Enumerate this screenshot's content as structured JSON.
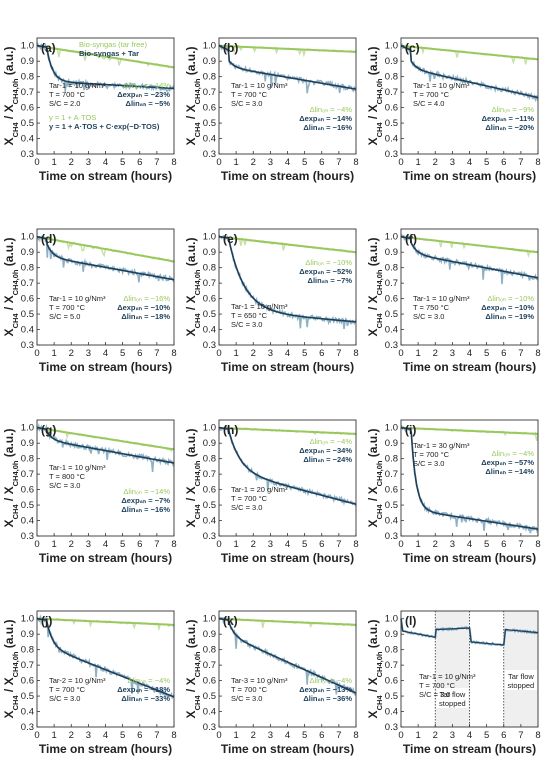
{
  "colors": {
    "light": "#9ac85e",
    "dark": "#1d3f5a",
    "noise": "#7aa3bb",
    "shade": "#efefef"
  },
  "shared_axes": {
    "xlabel": "Time on stream (hours)",
    "ylabel_main": "X",
    "ylabel_sub1": "CH4",
    "ylabel_mid": " / X",
    "ylabel_sub2": "CH4,0h",
    "ylabel_unit": " (a.u.)",
    "xticks": [
      "0",
      "1",
      "2",
      "3",
      "4",
      "5",
      "6",
      "7",
      "8"
    ],
    "yticks": [
      "0.3",
      "0.4",
      "0.5",
      "0.6",
      "0.7",
      "0.8",
      "0.9",
      "1.0"
    ]
  },
  "legend": {
    "series_light": "Bio-syngas (tar free)",
    "series_dark": "Bio-syngas + Tar",
    "model_linear": "y = 1 + A·TOS",
    "model_exp": "y = 1 + A·TOS + C·exp(−D·TOS)"
  },
  "chart_data": [
    {
      "type": "line",
      "panel": "(a)",
      "xlim": [
        0,
        8
      ],
      "ylim": [
        0.3,
        1.05
      ],
      "conditions": [
        "Tar-1 = 10 g/Nm³",
        "T = 700 °C",
        "S/C = 2.0"
      ],
      "deltas": [
        {
          "label": "Δlin₀ₕ = −14%",
          "series": "light"
        },
        {
          "label": "Δexp₈ₕ = −23%",
          "series": "dark"
        },
        {
          "label": "Δlin₈ₕ = −5%",
          "series": "dark"
        }
      ],
      "series": [
        {
          "name": "Bio-syngas (tar free)",
          "model": "linear",
          "A": -0.0175
        },
        {
          "name": "Bio-syngas + Tar",
          "model": "exp",
          "y0": 1.0,
          "yjump": 0.97,
          "A": -0.0062,
          "C": 0.2,
          "D": 3.0,
          "t_start": 0.6
        }
      ]
    },
    {
      "type": "line",
      "panel": "(b)",
      "xlim": [
        0,
        8
      ],
      "ylim": [
        0.3,
        1.05
      ],
      "conditions": [
        "Tar-1 = 10 g/Nm³",
        "T = 700 °C",
        "S/C = 3.0"
      ],
      "deltas": [
        {
          "label": "Δlin₀ₕ = −4%",
          "series": "light"
        },
        {
          "label": "Δexp₈ₕ = −14%",
          "series": "dark"
        },
        {
          "label": "Δlin₈ₕ = −16%",
          "series": "dark"
        }
      ],
      "series": [
        {
          "name": "Bio-syngas (tar free)",
          "model": "linear",
          "A": -0.005
        },
        {
          "name": "Bio-syngas + Tar",
          "model": "exp",
          "y0": 1.0,
          "yjump": 0.9,
          "A": -0.019,
          "C": 0.04,
          "D": 3.0,
          "t_start": 0.6
        }
      ]
    },
    {
      "type": "line",
      "panel": "(c)",
      "xlim": [
        0,
        8
      ],
      "ylim": [
        0.3,
        1.05
      ],
      "conditions": [
        "Tar-1 = 10 g/Nm³",
        "T = 700 °C",
        "S/C = 4.0"
      ],
      "deltas": [
        {
          "label": "Δlin₀ₕ = −9%",
          "series": "light"
        },
        {
          "label": "Δexp₈ₕ = −11%",
          "series": "dark"
        },
        {
          "label": "Δlin₈ₕ = −20%",
          "series": "dark"
        }
      ],
      "series": [
        {
          "name": "Bio-syngas (tar free)",
          "model": "linear",
          "A": -0.011
        },
        {
          "name": "Bio-syngas + Tar",
          "model": "exp",
          "y0": 1.0,
          "yjump": 0.9,
          "A": -0.025,
          "C": 0.05,
          "D": 3.0,
          "t_start": 0.6
        }
      ]
    },
    {
      "type": "line",
      "panel": "(d)",
      "xlim": [
        0,
        8
      ],
      "ylim": [
        0.3,
        1.05
      ],
      "conditions": [
        "Tar-1 = 10 g/Nm³",
        "T = 700 °C",
        "S/C = 5.0"
      ],
      "deltas": [
        {
          "label": "Δlin₀ₕ = −16%",
          "series": "light"
        },
        {
          "label": "Δexp₈ₕ = −10%",
          "series": "dark"
        },
        {
          "label": "Δlin₈ₕ = −18%",
          "series": "dark"
        }
      ],
      "series": [
        {
          "name": "Bio-syngas (tar free)",
          "model": "linear",
          "A": -0.02
        },
        {
          "name": "Bio-syngas + Tar",
          "model": "exp",
          "y0": 1.0,
          "yjump": 0.95,
          "A": -0.02,
          "C": 0.08,
          "D": 3.0,
          "t_start": 0.6
        }
      ]
    },
    {
      "type": "line",
      "panel": "(e)",
      "xlim": [
        0,
        8
      ],
      "ylim": [
        0.3,
        1.05
      ],
      "conditions": [
        "Tar-1 = 10 g/Nm³",
        "T = 650 °C",
        "S/C = 3.0"
      ],
      "deltas": [
        {
          "label": "Δlin₀ₕ = −10%",
          "series": "light"
        },
        {
          "label": "Δexp₈ₕ = −52%",
          "series": "dark"
        },
        {
          "label": "Δlin₈ₕ = −7%",
          "series": "dark"
        }
      ],
      "series": [
        {
          "name": "Bio-syngas (tar free)",
          "model": "linear",
          "A": -0.0125
        },
        {
          "name": "Bio-syngas + Tar",
          "model": "exp",
          "y0": 1.0,
          "yjump": 0.97,
          "A": -0.0095,
          "C": 0.45,
          "D": 1.1,
          "t_start": 0.6
        }
      ]
    },
    {
      "type": "line",
      "panel": "(f)",
      "xlim": [
        0,
        8
      ],
      "ylim": [
        0.3,
        1.05
      ],
      "conditions": [
        "Tar-1 = 10 g/Nm³",
        "T = 750 °C",
        "S/C = 3.0"
      ],
      "deltas": [
        {
          "label": "Δlin₀ₕ = −10%",
          "series": "light"
        },
        {
          "label": "Δexp₈ₕ = −10%",
          "series": "dark"
        },
        {
          "label": "Δlin₈ₕ = −19%",
          "series": "dark"
        }
      ],
      "series": [
        {
          "name": "Bio-syngas (tar free)",
          "model": "linear",
          "A": -0.0125
        },
        {
          "name": "Bio-syngas + Tar",
          "model": "exp",
          "y0": 1.0,
          "yjump": 0.96,
          "A": -0.021,
          "C": 0.07,
          "D": 3.0,
          "t_start": 0.6
        }
      ]
    },
    {
      "type": "line",
      "panel": "(g)",
      "xlim": [
        0,
        8
      ],
      "ylim": [
        0.3,
        1.05
      ],
      "conditions": [
        "Tar-1 = 10 g/Nm³",
        "T = 800 °C",
        "S/C = 3.0"
      ],
      "deltas": [
        {
          "label": "Δlin₀ₕ = −14%",
          "series": "light"
        },
        {
          "label": "Δexp₈ₕ = −7%",
          "series": "dark"
        },
        {
          "label": "Δlin₈ₕ = −16%",
          "series": "dark"
        }
      ],
      "series": [
        {
          "name": "Bio-syngas (tar free)",
          "model": "linear",
          "A": -0.0175
        },
        {
          "name": "Bio-syngas + Tar",
          "model": "exp",
          "y0": 1.0,
          "yjump": 0.97,
          "A": -0.02,
          "C": 0.05,
          "D": 3.0,
          "t_start": 0.6
        }
      ]
    },
    {
      "type": "line",
      "panel": "(h)",
      "xlim": [
        0,
        8
      ],
      "ylim": [
        0.3,
        1.05
      ],
      "conditions": [
        "Tar-1 = 20 g/Nm³",
        "T = 700 °C",
        "S/C = 3.0"
      ],
      "deltas": [
        {
          "label": "Δlin₀ₕ = −4%",
          "series": "light"
        },
        {
          "label": "Δexp₈ₕ = −34%",
          "series": "dark"
        },
        {
          "label": "Δlin₈ₕ = −24%",
          "series": "dark"
        }
      ],
      "series": [
        {
          "name": "Bio-syngas (tar free)",
          "model": "linear",
          "A": -0.005
        },
        {
          "name": "Bio-syngas + Tar",
          "model": "exp",
          "y0": 1.0,
          "yjump": 0.97,
          "A": -0.029,
          "C": 0.25,
          "D": 1.5,
          "t_start": 0.6
        }
      ]
    },
    {
      "type": "line",
      "panel": "(i)",
      "xlim": [
        0,
        8
      ],
      "ylim": [
        0.3,
        1.05
      ],
      "conditions": [
        "Tar-1 = 30 g/Nm³",
        "T = 700 °C",
        "S/C = 3.0"
      ],
      "deltas": [
        {
          "label": "Δlin₀ₕ = −4%",
          "series": "light"
        },
        {
          "label": "Δexp₈ₕ = −57%",
          "series": "dark"
        },
        {
          "label": "Δlin₈ₕ = −14%",
          "series": "dark"
        }
      ],
      "series": [
        {
          "name": "Bio-syngas (tar free)",
          "model": "linear",
          "A": -0.005
        },
        {
          "name": "Bio-syngas + Tar",
          "model": "exp",
          "y0": 1.0,
          "yjump": 0.97,
          "A": -0.017,
          "C": 0.5,
          "D": 3.5,
          "t_start": 0.6
        }
      ]
    },
    {
      "type": "line",
      "panel": "(j)",
      "xlim": [
        0,
        8
      ],
      "ylim": [
        0.3,
        1.05
      ],
      "conditions": [
        "Tar-2 = 10 g/Nm³",
        "T = 700 °C",
        "S/C = 3.0"
      ],
      "deltas": [
        {
          "label": "Δlin₀ₕ = −4%",
          "series": "light"
        },
        {
          "label": "Δexp₈ₕ = −18%",
          "series": "dark"
        },
        {
          "label": "Δlin₈ₕ = −33%",
          "series": "dark"
        }
      ],
      "series": [
        {
          "name": "Bio-syngas (tar free)",
          "model": "linear",
          "A": -0.005
        },
        {
          "name": "Bio-syngas + Tar",
          "model": "exp",
          "y0": 1.0,
          "yjump": 0.97,
          "A": -0.044,
          "C": 0.15,
          "D": 3.0,
          "t_start": 0.6
        }
      ]
    },
    {
      "type": "line",
      "panel": "(k)",
      "xlim": [
        0,
        8
      ],
      "ylim": [
        0.3,
        1.05
      ],
      "conditions": [
        "Tar-3 = 10 g/Nm³",
        "T = 700 °C",
        "S/C = 3.0"
      ],
      "deltas": [
        {
          "label": "Δlin₀ₕ = −4%",
          "series": "light"
        },
        {
          "label": "Δexp₈ₕ = −13%",
          "series": "dark"
        },
        {
          "label": "Δlin₈ₕ = −36%",
          "series": "dark"
        }
      ],
      "series": [
        {
          "name": "Bio-syngas (tar free)",
          "model": "linear",
          "A": -0.005
        },
        {
          "name": "Bio-syngas + Tar",
          "model": "exp",
          "y0": 1.0,
          "yjump": 0.97,
          "A": -0.05,
          "C": 0.08,
          "D": 3.0,
          "t_start": 0.6
        }
      ]
    },
    {
      "type": "line",
      "panel": "(l)",
      "xlim": [
        0,
        8
      ],
      "ylim": [
        0.3,
        1.05
      ],
      "conditions": [
        "Tar-1 = 10 g/Nm³",
        "T = 700 °C",
        "S/C = 3.0"
      ],
      "deltas": [],
      "stopped_intervals": [
        [
          2,
          4
        ],
        [
          6,
          8
        ]
      ],
      "stopped_label_line1": "Tar flow",
      "stopped_label_line2": "stopped",
      "series": [
        {
          "name": "Bio-syngas + Tar",
          "model": "step",
          "points": [
            [
              0,
              1.0
            ],
            [
              0.1,
              0.92
            ],
            [
              2.0,
              0.88
            ],
            [
              2.05,
              0.93
            ],
            [
              4.0,
              0.94
            ],
            [
              4.1,
              0.85
            ],
            [
              6.0,
              0.83
            ],
            [
              6.1,
              0.93
            ],
            [
              8.0,
              0.91
            ]
          ]
        }
      ]
    }
  ]
}
